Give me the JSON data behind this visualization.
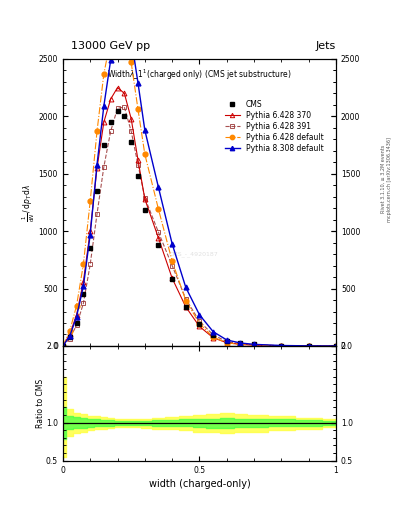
{
  "title_top": "13000 GeV pp",
  "title_right": "Jets",
  "plot_title": "Width$\\lambda$_1$^1$(charged only) (CMS jet substructure)",
  "xlabel": "width (charged-only)",
  "ylabel_main": "$\\frac{1}{\\mathrm{d}N}\\,/\\,\\mathrm{d}p_T\\,\\mathrm{d}\\lambda$",
  "ylabel_ratio": "Ratio to CMS",
  "watermark": "mcplots.cern.ch [arXiv:1306.3436]",
  "rivet_version": "Rivet 3.1.10, ≥ 3.2M events",
  "cms_watermark": "CMS_-_4920187",
  "x_values": [
    0.0,
    0.025,
    0.05,
    0.075,
    0.1,
    0.125,
    0.15,
    0.175,
    0.2,
    0.225,
    0.25,
    0.275,
    0.3,
    0.35,
    0.4,
    0.45,
    0.5,
    0.55,
    0.6,
    0.65,
    0.7,
    0.8,
    0.9,
    1.0
  ],
  "cms_y": [
    0,
    80,
    200,
    450,
    850,
    1350,
    1750,
    1950,
    2050,
    2000,
    1780,
    1480,
    1180,
    880,
    580,
    340,
    190,
    95,
    45,
    25,
    15,
    4,
    1,
    0
  ],
  "py6_370_y": [
    0,
    100,
    270,
    560,
    1000,
    1550,
    1950,
    2150,
    2250,
    2200,
    1980,
    1620,
    1280,
    940,
    590,
    340,
    170,
    72,
    28,
    14,
    7,
    2,
    0.5,
    0
  ],
  "py6_391_y": [
    0,
    65,
    180,
    370,
    710,
    1150,
    1560,
    1870,
    2070,
    2080,
    1870,
    1580,
    1290,
    990,
    700,
    410,
    215,
    97,
    38,
    18,
    10,
    3,
    0.8,
    0
  ],
  "py6_def_y": [
    0,
    130,
    350,
    710,
    1260,
    1870,
    2370,
    2670,
    2780,
    2730,
    2470,
    2060,
    1670,
    1190,
    740,
    395,
    195,
    77,
    28,
    13,
    7,
    2,
    0.5,
    0
  ],
  "py8_def_y": [
    0,
    85,
    255,
    520,
    970,
    1580,
    2090,
    2490,
    2790,
    2840,
    2680,
    2290,
    1880,
    1380,
    890,
    510,
    272,
    125,
    52,
    26,
    14,
    4,
    1,
    0
  ],
  "cms_color": "#000000",
  "py6_370_color": "#cc0000",
  "py6_391_color": "#993333",
  "py6_def_color": "#ff8800",
  "py8_def_color": "#0000cc",
  "ratio_yellow_upper": [
    1.6,
    1.18,
    1.13,
    1.11,
    1.09,
    1.08,
    1.07,
    1.06,
    1.05,
    1.05,
    1.05,
    1.05,
    1.05,
    1.06,
    1.07,
    1.08,
    1.1,
    1.11,
    1.12,
    1.11,
    1.1,
    1.08,
    1.06,
    1.05
  ],
  "ratio_yellow_lower": [
    0.55,
    0.82,
    0.86,
    0.88,
    0.9,
    0.91,
    0.92,
    0.93,
    0.94,
    0.94,
    0.94,
    0.94,
    0.93,
    0.92,
    0.91,
    0.9,
    0.88,
    0.87,
    0.86,
    0.87,
    0.88,
    0.9,
    0.92,
    0.94
  ],
  "ratio_green_upper": [
    1.2,
    1.09,
    1.07,
    1.06,
    1.05,
    1.04,
    1.03,
    1.03,
    1.02,
    1.02,
    1.02,
    1.02,
    1.02,
    1.03,
    1.03,
    1.04,
    1.05,
    1.05,
    1.06,
    1.05,
    1.05,
    1.04,
    1.03,
    1.02
  ],
  "ratio_green_lower": [
    0.78,
    0.91,
    0.93,
    0.93,
    0.94,
    0.95,
    0.96,
    0.96,
    0.97,
    0.97,
    0.97,
    0.97,
    0.97,
    0.96,
    0.96,
    0.95,
    0.94,
    0.93,
    0.93,
    0.94,
    0.94,
    0.95,
    0.96,
    0.97
  ],
  "ylim_main": [
    0,
    2500
  ],
  "yticks_main": [
    0,
    500,
    1000,
    1500,
    2000,
    2500
  ],
  "ylim_ratio": [
    0.5,
    2.0
  ],
  "yticks_ratio": [
    0.5,
    1.0,
    2.0
  ],
  "background_color": "#ffffff"
}
